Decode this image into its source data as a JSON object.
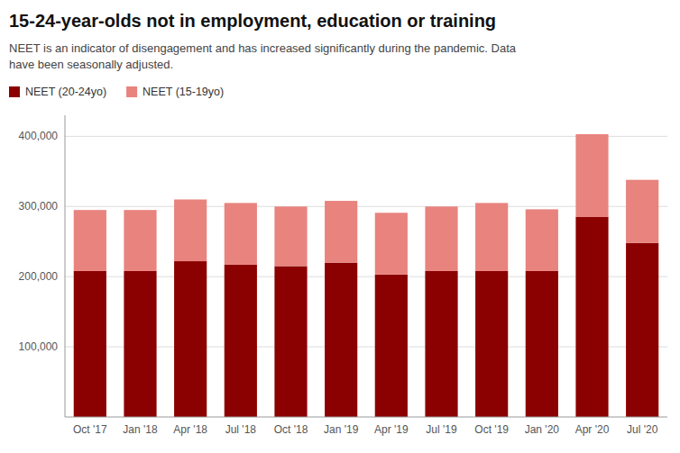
{
  "chart_data": {
    "type": "bar",
    "title": "15-24-year-olds not in employment, education or training",
    "subtitle": "NEET is an indicator of disengagement and has increased significantly during the pandemic. Data\nhave been seasonally adjusted.",
    "categories": [
      "Oct '17",
      "Jan '18",
      "Apr '18",
      "Jul '18",
      "Oct '18",
      "Jan '19",
      "Apr '19",
      "Jul '19",
      "Oct '19",
      "Jan '20",
      "Apr '20",
      "Jul '20"
    ],
    "series": [
      {
        "name": "NEET (20-24yo)",
        "color": "#8B0000",
        "values": [
          208000,
          208000,
          222000,
          217000,
          215000,
          220000,
          203000,
          208000,
          208000,
          208000,
          285000,
          248000
        ]
      },
      {
        "name": "NEET (15-19yo)",
        "color": "#e8837e",
        "values": [
          87000,
          87000,
          88000,
          88000,
          85000,
          88000,
          88000,
          92000,
          97000,
          88000,
          118000,
          90000
        ]
      }
    ],
    "stacked": true,
    "ylim": [
      0,
      430000
    ],
    "yticks": [
      {
        "value": 100000,
        "label": "100,000"
      },
      {
        "value": 200000,
        "label": "200,000"
      },
      {
        "value": 300000,
        "label": "300,000"
      },
      {
        "value": 400000,
        "label": "400,000"
      }
    ],
    "grid": true,
    "legend": "upper left"
  }
}
